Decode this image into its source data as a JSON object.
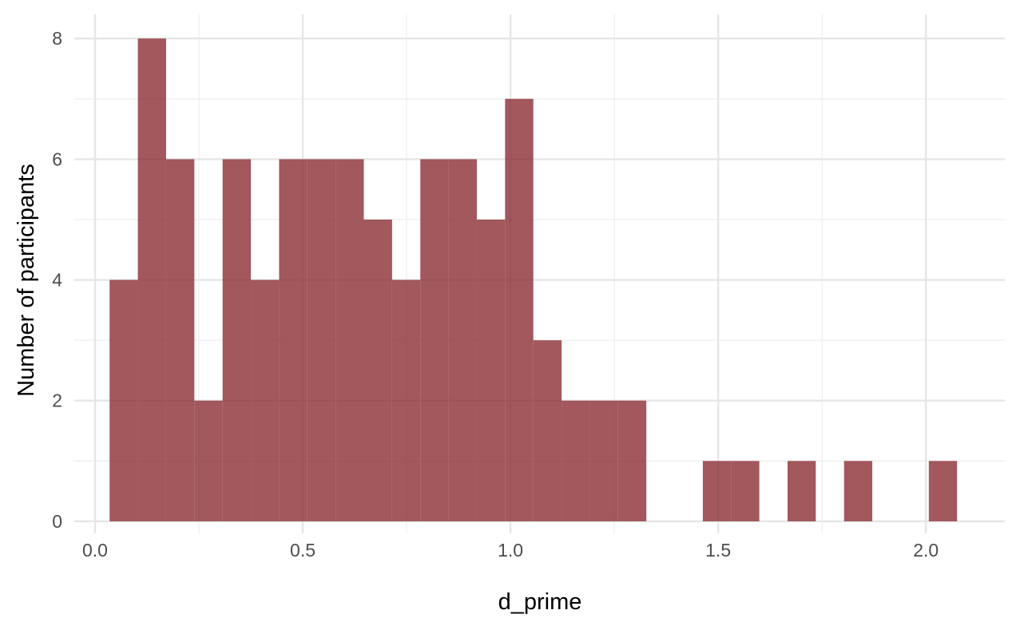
{
  "chart_data": {
    "type": "bar",
    "title": "",
    "xlabel": "d_prime",
    "ylabel": "Number of participants",
    "xlim": [
      -0.05,
      2.19
    ],
    "ylim": [
      -0.2,
      8.4
    ],
    "x_ticks": [
      0.0,
      0.5,
      1.0,
      1.5,
      2.0
    ],
    "x_tick_labels": [
      "0.0",
      "0.5",
      "1.0",
      "1.5",
      "2.0"
    ],
    "y_ticks": [
      0,
      2,
      4,
      6,
      8
    ],
    "y_tick_labels": [
      "0",
      "2",
      "4",
      "6",
      "8"
    ],
    "grid": true,
    "bin_width": 0.068,
    "bins": [
      {
        "x0": 0.035,
        "x1": 0.103,
        "count": 4
      },
      {
        "x0": 0.103,
        "x1": 0.171,
        "count": 8
      },
      {
        "x0": 0.171,
        "x1": 0.239,
        "count": 6
      },
      {
        "x0": 0.239,
        "x1": 0.307,
        "count": 2
      },
      {
        "x0": 0.307,
        "x1": 0.375,
        "count": 6
      },
      {
        "x0": 0.375,
        "x1": 0.443,
        "count": 4
      },
      {
        "x0": 0.443,
        "x1": 0.511,
        "count": 6
      },
      {
        "x0": 0.511,
        "x1": 0.579,
        "count": 6
      },
      {
        "x0": 0.579,
        "x1": 0.647,
        "count": 6
      },
      {
        "x0": 0.647,
        "x1": 0.715,
        "count": 5
      },
      {
        "x0": 0.715,
        "x1": 0.783,
        "count": 4
      },
      {
        "x0": 0.783,
        "x1": 0.851,
        "count": 6
      },
      {
        "x0": 0.851,
        "x1": 0.919,
        "count": 6
      },
      {
        "x0": 0.919,
        "x1": 0.987,
        "count": 5
      },
      {
        "x0": 0.987,
        "x1": 1.055,
        "count": 7
      },
      {
        "x0": 1.055,
        "x1": 1.123,
        "count": 3
      },
      {
        "x0": 1.123,
        "x1": 1.191,
        "count": 2
      },
      {
        "x0": 1.191,
        "x1": 1.259,
        "count": 2
      },
      {
        "x0": 1.259,
        "x1": 1.327,
        "count": 2
      },
      {
        "x0": 1.327,
        "x1": 1.395,
        "count": 0
      },
      {
        "x0": 1.395,
        "x1": 1.463,
        "count": 0
      },
      {
        "x0": 1.463,
        "x1": 1.531,
        "count": 1
      },
      {
        "x0": 1.531,
        "x1": 1.599,
        "count": 1
      },
      {
        "x0": 1.599,
        "x1": 1.667,
        "count": 0
      },
      {
        "x0": 1.667,
        "x1": 1.735,
        "count": 1
      },
      {
        "x0": 1.735,
        "x1": 1.803,
        "count": 0
      },
      {
        "x0": 1.803,
        "x1": 1.871,
        "count": 1
      },
      {
        "x0": 1.871,
        "x1": 1.939,
        "count": 0
      },
      {
        "x0": 1.939,
        "x1": 2.007,
        "count": 0
      },
      {
        "x0": 2.007,
        "x1": 2.075,
        "count": 1
      }
    ],
    "bar_color": "#8b2e35",
    "bar_opacity": 0.8
  }
}
